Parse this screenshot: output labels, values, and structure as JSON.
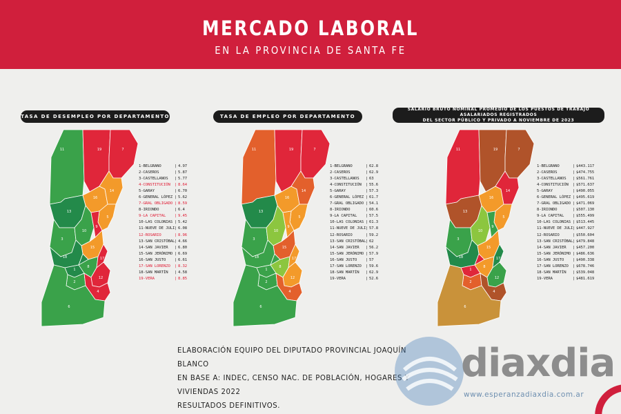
{
  "header": {
    "title": "MERCADO LABORAL",
    "subtitle": "EN LA PROVINCIA DE SANTA FE"
  },
  "colors": {
    "brand_red": "#d01f3c",
    "highlight": "#e01b34",
    "dark_green": "#238a4a",
    "green": "#3aa24a",
    "light_green": "#8cc63f",
    "orange": "#f39a2a",
    "dark_orange": "#e3602c",
    "red": "#e0263a",
    "brown": "#b0532a"
  },
  "maps": [
    {
      "title": "TASA DE DESEMPLEO POR DEPARTAMENTO",
      "legend": [
        {
          "name": "1-BELGRANO",
          "value": "4.97",
          "hl": false
        },
        {
          "name": "2-CASEROS",
          "value": "5.87",
          "hl": false
        },
        {
          "name": "3-CASTELLANOS",
          "value": "5.77",
          "hl": false
        },
        {
          "name": "4-CONSTITUCIÓN",
          "value": "8.64",
          "hl": true
        },
        {
          "name": "5-GARAY",
          "value": "6.70",
          "hl": false
        },
        {
          "name": "6-GENERAL LÓPEZ",
          "value": "5.62",
          "hl": false
        },
        {
          "name": "7-GRAL OBLIGADO",
          "value": "8.59",
          "hl": true
        },
        {
          "name": "8-IRIONDO",
          "value": "6.4",
          "hl": false
        },
        {
          "name": "9-LA CAPITAL",
          "value": "9.45",
          "hl": true
        },
        {
          "name": "10-LAS COLONIAS",
          "value": "5.42",
          "hl": false
        },
        {
          "name": "11-NUEVE DE JULIO",
          "value": "6.08",
          "hl": false
        },
        {
          "name": "12-ROSARIO",
          "value": "8.96",
          "hl": true
        },
        {
          "name": "13-SAN CRISTÓBAL",
          "value": "4.66",
          "hl": false
        },
        {
          "name": "14-SAN JAVIER",
          "value": "6.80",
          "hl": false
        },
        {
          "name": "15-SAN JERÓNIMO",
          "value": "6.69",
          "hl": false
        },
        {
          "name": "16-SAN JUSTO",
          "value": "6.61",
          "hl": false
        },
        {
          "name": "17-SAN LORENZO",
          "value": "8.32",
          "hl": true
        },
        {
          "name": "18-SAN MARTÍN",
          "value": "4.58",
          "hl": false
        },
        {
          "name": "19-VERA",
          "value": "8.85",
          "hl": true
        }
      ]
    },
    {
      "title": "TASA DE EMPLEO POR DEPARTAMENTO",
      "legend": [
        {
          "name": "1-BELGRANO",
          "value": "62.8",
          "hl": false
        },
        {
          "name": "2-CASEROS",
          "value": "62.9",
          "hl": false
        },
        {
          "name": "3-CASTELLANOS",
          "value": "63",
          "hl": false
        },
        {
          "name": "4-CONSTITUCIÓN",
          "value": "55.6",
          "hl": false
        },
        {
          "name": "5-GARAY",
          "value": "57.3",
          "hl": false
        },
        {
          "name": "6-GENERAL LÓPEZ",
          "value": "61.7",
          "hl": false
        },
        {
          "name": "7-GRAL OBLIGADO",
          "value": "54.1",
          "hl": false
        },
        {
          "name": "8-IRIONDO",
          "value": "60.6",
          "hl": false
        },
        {
          "name": "9-LA CAPITAL",
          "value": "57.5",
          "hl": false
        },
        {
          "name": "10-LAS COLONIAS",
          "value": "61.3",
          "hl": false
        },
        {
          "name": "11-NUEVE DE JULIO",
          "value": "57.8",
          "hl": false
        },
        {
          "name": "12-ROSARIO",
          "value": "59.2",
          "hl": false
        },
        {
          "name": "13-SAN CRISTÓBAL",
          "value": "62",
          "hl": false
        },
        {
          "name": "14-SAN JAVIER",
          "value": "56.2",
          "hl": false
        },
        {
          "name": "15-SAN JERÓNIMO",
          "value": "57.9",
          "hl": false
        },
        {
          "name": "16-SAN JUSTO",
          "value": "57",
          "hl": false
        },
        {
          "name": "17-SAN LORENZO",
          "value": "59.6",
          "hl": false
        },
        {
          "name": "18-SAN MARTÍN",
          "value": "62.9",
          "hl": false
        },
        {
          "name": "19-VERA",
          "value": "52.6",
          "hl": false
        }
      ]
    },
    {
      "title_line1": "SALARIO BRUTO NOMINAL PROMEDIO DE LOS PUESTOS DE TRABAJO ASALARIADOS REGISTRADOS",
      "title_line2": "DEL SECTOR PÚBLICO Y PRIVADO A NOVIEMBRE DE 2023",
      "legend": [
        {
          "name": "1-BELGRANO",
          "value": "$443.117",
          "hl": false
        },
        {
          "name": "2-CASEROS",
          "value": "$474.755",
          "hl": false
        },
        {
          "name": "3-CASTELLANOS",
          "value": "$561.761",
          "hl": false
        },
        {
          "name": "4-CONSTITUCIÓN",
          "value": "$571.637",
          "hl": false
        },
        {
          "name": "5-GARAY",
          "value": "$490.055",
          "hl": false
        },
        {
          "name": "6-GENERAL LÓPEZ",
          "value": "$495.619",
          "hl": false
        },
        {
          "name": "7-GRAL OBLIGADO",
          "value": "$471.069",
          "hl": false
        },
        {
          "name": "8-IRIONDO",
          "value": "$507.130",
          "hl": false
        },
        {
          "name": "9-LA CAPITAL",
          "value": "$555.499",
          "hl": false
        },
        {
          "name": "10-LAS COLONIAS",
          "value": "$513.445",
          "hl": false
        },
        {
          "name": "11-NUEVE DE JULIO",
          "value": "$447.927",
          "hl": false
        },
        {
          "name": "12-ROSARIO",
          "value": "$550.604",
          "hl": false
        },
        {
          "name": "13-SAN CRISTÓBAL",
          "value": "$479.848",
          "hl": false
        },
        {
          "name": "14-SAN JAVIER",
          "value": "$457.200",
          "hl": false
        },
        {
          "name": "15-SAN JERÓNIMO",
          "value": "$486.636",
          "hl": false
        },
        {
          "name": "16-SAN JUSTO",
          "value": "$490.338",
          "hl": false
        },
        {
          "name": "17-SAN LORENZO",
          "value": "$678.746",
          "hl": false
        },
        {
          "name": "18-SAN MARTÍN",
          "value": "$539.048",
          "hl": false
        },
        {
          "name": "19-VERA",
          "value": "$481.619",
          "hl": false
        }
      ]
    }
  ],
  "credit": {
    "line1": "ELABORACIÓN EQUIPO DEL DIPUTADO PROVINCIAL JOAQUÍN BLANCO",
    "line2": "EN BASE A: INDEC, CENSO NAC. DE POBLACIÓN, HOGARES Y VIVIENDAS 2022",
    "line3": "RESULTADOS DEFINITIVOS."
  },
  "logo": {
    "name": "diaxdia",
    "url": "www.esperanzadiaxdia.com.ar"
  }
}
